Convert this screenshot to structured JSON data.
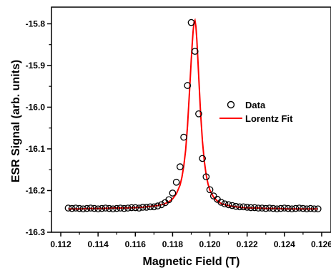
{
  "chart_data": {
    "type": "scatter",
    "xlabel": "Magnetic Field (T)",
    "ylabel": "ESR Signal (arb. units)",
    "xlim": [
      0.1115,
      0.1265
    ],
    "ylim": [
      -16.3,
      -15.76
    ],
    "x_ticks": [
      "0.112",
      "0.114",
      "0.116",
      "0.118",
      "0.120",
      "0.122",
      "0.124",
      "0.126"
    ],
    "x_tick_values": [
      0.112,
      0.114,
      0.116,
      0.118,
      0.12,
      0.122,
      0.124,
      0.126
    ],
    "y_ticks": [
      "-15.8",
      "-15.9",
      "-16.0",
      "-16.1",
      "-16.2",
      "-16.3"
    ],
    "y_tick_values": [
      -15.8,
      -15.9,
      -16.0,
      -16.1,
      -16.2,
      -16.3
    ],
    "legend_position": "right",
    "series": [
      {
        "name": "Data",
        "style": "open-circle",
        "color": "#000000",
        "x": [
          0.1124,
          0.1126,
          0.1128,
          0.113,
          0.1132,
          0.1134,
          0.1136,
          0.1138,
          0.114,
          0.1142,
          0.1144,
          0.1146,
          0.1148,
          0.115,
          0.1152,
          0.1154,
          0.1156,
          0.1158,
          0.116,
          0.1162,
          0.1164,
          0.1166,
          0.1168,
          0.117,
          0.1172,
          0.1174,
          0.1176,
          0.1178,
          0.118,
          0.1182,
          0.1184,
          0.1186,
          0.1188,
          0.119,
          0.1192,
          0.1194,
          0.1196,
          0.1198,
          0.12,
          0.1202,
          0.1204,
          0.1206,
          0.1208,
          0.121,
          0.1212,
          0.1214,
          0.1216,
          0.1218,
          0.122,
          0.1222,
          0.1224,
          0.1226,
          0.1228,
          0.123,
          0.1232,
          0.1234,
          0.1236,
          0.1238,
          0.124,
          0.1242,
          0.1244,
          0.1246,
          0.1248,
          0.125,
          0.1252,
          0.1254,
          0.1256,
          0.1258
        ],
        "y": [
          -16.242,
          -16.243,
          -16.242,
          -16.243,
          -16.244,
          -16.243,
          -16.242,
          -16.243,
          -16.244,
          -16.243,
          -16.242,
          -16.243,
          -16.244,
          -16.243,
          -16.242,
          -16.243,
          -16.242,
          -16.241,
          -16.241,
          -16.242,
          -16.24,
          -16.24,
          -16.239,
          -16.239,
          -16.237,
          -16.234,
          -16.229,
          -16.222,
          -16.206,
          -16.18,
          -16.143,
          -16.072,
          -15.948,
          -15.797,
          -15.866,
          -16.016,
          -16.123,
          -16.167,
          -16.198,
          -16.213,
          -16.221,
          -16.228,
          -16.232,
          -16.234,
          -16.236,
          -16.238,
          -16.239,
          -16.239,
          -16.24,
          -16.241,
          -16.241,
          -16.242,
          -16.242,
          -16.243,
          -16.242,
          -16.243,
          -16.244,
          -16.243,
          -16.242,
          -16.243,
          -16.244,
          -16.243,
          -16.242,
          -16.243,
          -16.244,
          -16.243,
          -16.244,
          -16.244
        ]
      },
      {
        "name": "Lorentz Fit",
        "style": "line",
        "color": "#ff0000",
        "x": [
          0.1124,
          0.113,
          0.1136,
          0.1142,
          0.1148,
          0.1154,
          0.116,
          0.1164,
          0.1168,
          0.1172,
          0.1175,
          0.1178,
          0.118,
          0.1182,
          0.1184,
          0.1185,
          0.1186,
          0.1187,
          0.1188,
          0.1189,
          0.11895,
          0.119,
          0.11905,
          0.1191,
          0.11915,
          0.1192,
          0.11925,
          0.1193,
          0.11935,
          0.1194,
          0.1195,
          0.1196,
          0.1197,
          0.1198,
          0.1199,
          0.12,
          0.1202,
          0.1204,
          0.1206,
          0.1208,
          0.1211,
          0.1214,
          0.1218,
          0.1222,
          0.1226,
          0.123,
          0.1236,
          0.1242,
          0.1248,
          0.1254,
          0.1258
        ],
        "y": [
          -16.244,
          -16.244,
          -16.243,
          -16.243,
          -16.242,
          -16.242,
          -16.241,
          -16.24,
          -16.238,
          -16.236,
          -16.233,
          -16.227,
          -16.22,
          -16.208,
          -16.187,
          -16.168,
          -16.141,
          -16.103,
          -16.045,
          -15.968,
          -15.928,
          -15.887,
          -15.85,
          -15.818,
          -15.797,
          -15.792,
          -15.806,
          -15.838,
          -15.88,
          -15.925,
          -16.013,
          -16.081,
          -16.129,
          -16.162,
          -16.184,
          -16.199,
          -16.216,
          -16.225,
          -16.231,
          -16.234,
          -16.237,
          -16.239,
          -16.241,
          -16.242,
          -16.242,
          -16.243,
          -16.243,
          -16.244,
          -16.244,
          -16.244,
          -16.244
        ]
      }
    ]
  }
}
